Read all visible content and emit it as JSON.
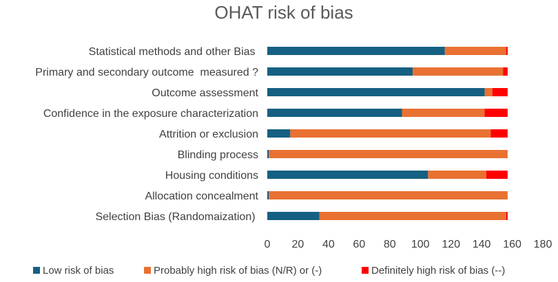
{
  "chart_data": {
    "type": "bar",
    "orientation": "horizontal",
    "stacked": true,
    "title": "OHAT risk of bias",
    "xlabel": "",
    "ylabel": "",
    "xlim": [
      0,
      180
    ],
    "x_ticks": [
      0,
      20,
      40,
      60,
      80,
      100,
      120,
      140,
      160,
      180
    ],
    "grid": false,
    "legend_position": "bottom",
    "categories": [
      "Statistical methods and other Bias ",
      "Primary and secondary outcome  measured ?",
      "Outcome assessment",
      "Confidence in the exposure characterization",
      "Attrition or exclusion",
      "Blinding process",
      "Housing conditions",
      "Allocation concealment",
      "Selection Bias (Randomaization) "
    ],
    "series": [
      {
        "name": "Low risk of bias",
        "color": "#156082",
        "values": [
          116,
          95,
          142,
          88,
          15,
          1,
          105,
          1,
          34
        ]
      },
      {
        "name": "Probably high risk of bias (N/R) or (-)",
        "color": "#E97132",
        "values": [
          40,
          59,
          5,
          54,
          131,
          156,
          38,
          156,
          122
        ]
      },
      {
        "name": "Definitely high risk of bias (--)",
        "color": "#FF0000",
        "values": [
          1,
          3,
          10,
          15,
          11,
          0,
          14,
          0,
          1
        ]
      }
    ]
  }
}
